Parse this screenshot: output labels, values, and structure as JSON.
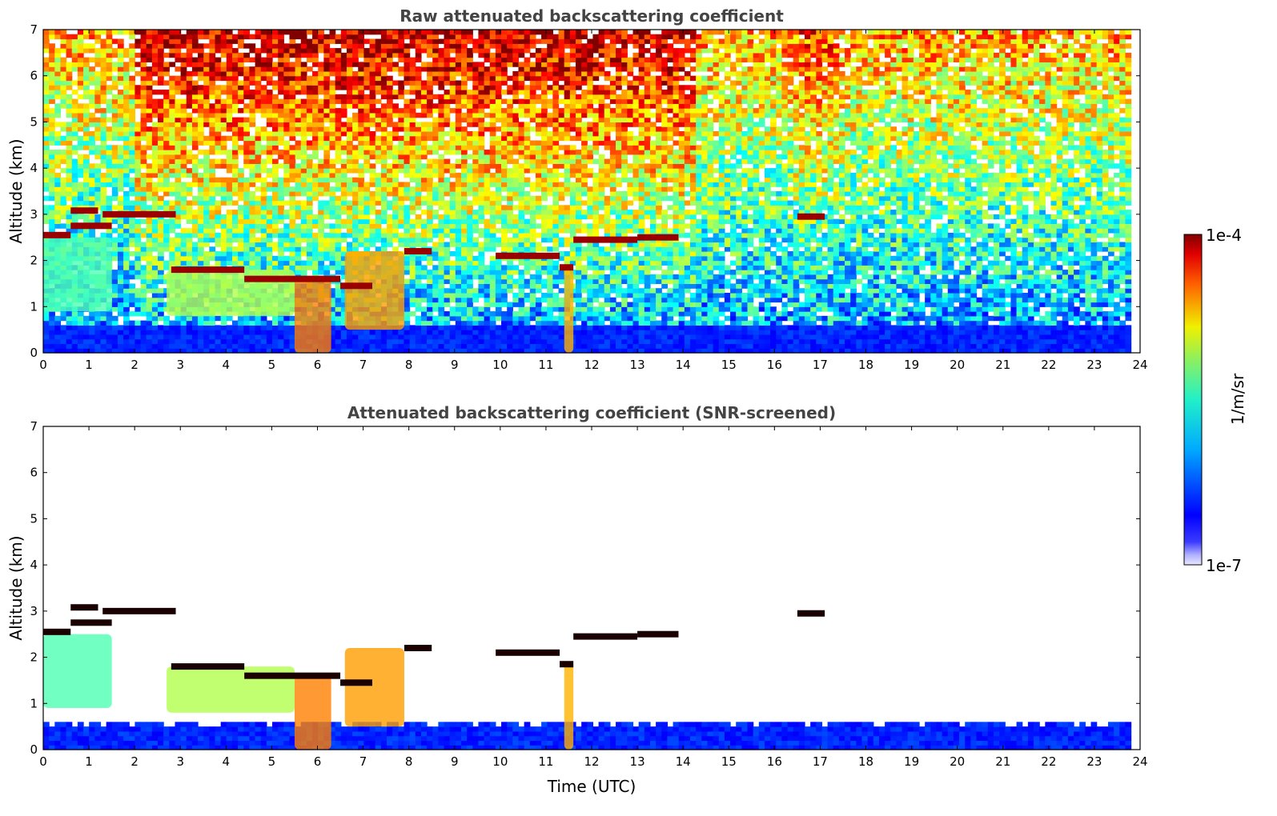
{
  "chart_data": [
    {
      "type": "heatmap",
      "title": "Raw attenuated backscattering coefficient",
      "xlabel": "",
      "ylabel": "Altitude (km)",
      "xlim": [
        0,
        24
      ],
      "ylim": [
        0,
        7
      ],
      "x_ticks": [
        "0",
        "1",
        "2",
        "3",
        "4",
        "5",
        "6",
        "7",
        "8",
        "9",
        "10",
        "11",
        "12",
        "13",
        "14",
        "15",
        "16",
        "17",
        "18",
        "19",
        "20",
        "21",
        "22",
        "23",
        "24"
      ],
      "y_ticks": [
        "0",
        "1",
        "2",
        "3",
        "4",
        "5",
        "6",
        "7"
      ],
      "data_end_time": 23.8,
      "screened": false
    },
    {
      "type": "heatmap",
      "title": "Attenuated backscattering coefficient (SNR-screened)",
      "xlabel": "Time (UTC)",
      "ylabel": "Altitude (km)",
      "xlim": [
        0,
        24
      ],
      "ylim": [
        0,
        7
      ],
      "x_ticks": [
        "0",
        "1",
        "2",
        "3",
        "4",
        "5",
        "6",
        "7",
        "8",
        "9",
        "10",
        "11",
        "12",
        "13",
        "14",
        "15",
        "16",
        "17",
        "18",
        "19",
        "20",
        "21",
        "22",
        "23",
        "24"
      ],
      "y_ticks": [
        "0",
        "1",
        "2",
        "3",
        "4",
        "5",
        "6",
        "7"
      ],
      "data_end_time": 23.8,
      "screened": true
    }
  ],
  "colorbar": {
    "label": "1/m/sr",
    "min_label": "1e-7",
    "max_label": "1e-4",
    "scale": "log",
    "colormap": "jet"
  },
  "features": {
    "cloud_layers": [
      {
        "t0": 0.0,
        "t1": 0.6,
        "alt": 2.55
      },
      {
        "t0": 0.6,
        "t1": 1.5,
        "alt": 2.75
      },
      {
        "t0": 0.6,
        "t1": 1.2,
        "alt": 3.08
      },
      {
        "t0": 1.3,
        "t1": 2.9,
        "alt": 3.0
      },
      {
        "t0": 2.8,
        "t1": 4.4,
        "alt": 1.8
      },
      {
        "t0": 4.4,
        "t1": 6.5,
        "alt": 1.6
      },
      {
        "t0": 6.5,
        "t1": 7.2,
        "alt": 1.45
      },
      {
        "t0": 7.9,
        "t1": 8.5,
        "alt": 2.2
      },
      {
        "t0": 9.9,
        "t1": 11.3,
        "alt": 2.1
      },
      {
        "t0": 11.3,
        "t1": 11.6,
        "alt": 1.85
      },
      {
        "t0": 11.6,
        "t1": 13.0,
        "alt": 2.45
      },
      {
        "t0": 13.0,
        "t1": 13.9,
        "alt": 2.5
      },
      {
        "t0": 16.5,
        "t1": 17.1,
        "alt": 2.95
      }
    ],
    "plumes": [
      {
        "t0": 0.0,
        "t1": 1.5,
        "alt0": 0.9,
        "alt1": 2.5,
        "level": 0.45
      },
      {
        "t0": 2.7,
        "t1": 5.5,
        "alt0": 0.8,
        "alt1": 1.8,
        "level": 0.55
      },
      {
        "t0": 5.5,
        "t1": 6.3,
        "alt0": 0.0,
        "alt1": 1.6,
        "level": 0.75
      },
      {
        "t0": 6.6,
        "t1": 7.9,
        "alt0": 0.5,
        "alt1": 2.2,
        "level": 0.72
      },
      {
        "t0": 11.4,
        "t1": 11.6,
        "alt0": 0.0,
        "alt1": 1.9,
        "level": 0.7
      }
    ]
  }
}
